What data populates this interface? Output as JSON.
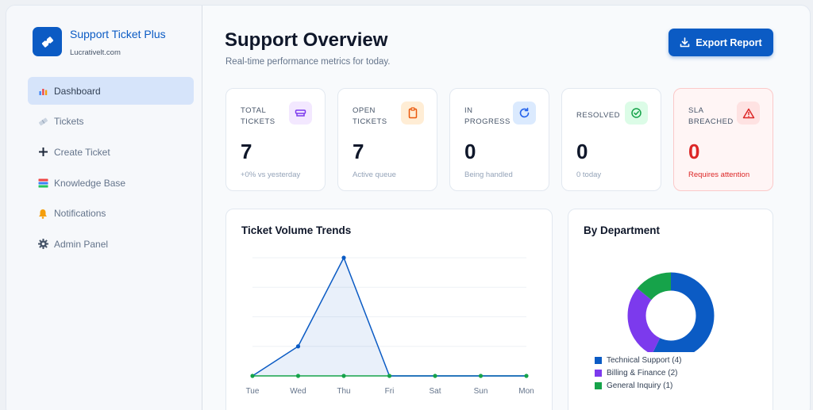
{
  "app": {
    "name": "Support Ticket Plus",
    "domain": "Lucrativelt.com",
    "brand_color": "#0b5bc4",
    "logo_icon": "ticket-icon"
  },
  "sidebar": {
    "items": [
      {
        "label": "Dashboard",
        "icon": "bar-chart-icon",
        "active": true
      },
      {
        "label": "Tickets",
        "icon": "ticket-icon",
        "active": false
      },
      {
        "label": "Create Ticket",
        "icon": "plus-icon",
        "active": false
      },
      {
        "label": "Knowledge Base",
        "icon": "books-icon",
        "active": false
      },
      {
        "label": "Notifications",
        "icon": "bell-icon",
        "active": false
      },
      {
        "label": "Admin Panel",
        "icon": "gear-icon",
        "active": false
      }
    ]
  },
  "header": {
    "title": "Support Overview",
    "subtitle": "Real-time performance metrics for today.",
    "export_label": "Export Report",
    "export_icon": "download-icon"
  },
  "stats": [
    {
      "label": "TOTAL TICKETS",
      "value": "7",
      "sub": "+0% vs yesterday",
      "icon": "inbox-icon",
      "icon_color": "#7c3aed",
      "icon_bg": "#f3e8ff"
    },
    {
      "label": "OPEN TICKETS",
      "value": "7",
      "sub": "Active queue",
      "icon": "clipboard-icon",
      "icon_color": "#ea580c",
      "icon_bg": "#ffedd5"
    },
    {
      "label": "IN PROGRESS",
      "value": "0",
      "sub": "Being handled",
      "icon": "refresh-icon",
      "icon_color": "#2563eb",
      "icon_bg": "#dbeafe"
    },
    {
      "label": "RESOLVED",
      "value": "0",
      "sub": "0 today",
      "icon": "check-circle-icon",
      "icon_color": "#16a34a",
      "icon_bg": "#dcfce7"
    },
    {
      "label": "SLA BREACHED",
      "value": "0",
      "sub": "Requires attention",
      "icon": "warning-icon",
      "icon_color": "#dc2626",
      "icon_bg": "#fee2e2"
    }
  ],
  "trend_panel": {
    "title": "Ticket Volume Trends"
  },
  "dept_panel": {
    "title": "By Department"
  },
  "chart_data": [
    {
      "type": "area",
      "title": "Ticket Volume Trends",
      "categories": [
        "Tue",
        "Wed",
        "Thu",
        "Fri",
        "Sat",
        "Sun",
        "Mon"
      ],
      "series": [
        {
          "color": "#0b5bc4",
          "values": [
            0,
            1,
            4,
            0,
            0,
            0,
            0
          ]
        },
        {
          "color": "#16a34a",
          "values": [
            0,
            0,
            0,
            0,
            0,
            0,
            0
          ]
        }
      ],
      "ylim": [
        0,
        4
      ],
      "grid": true
    },
    {
      "type": "pie",
      "title": "By Department",
      "donut": true,
      "labels": [
        "Technical Support (4)",
        "Billing & Finance (2)",
        "General Inquiry (1)"
      ],
      "values": [
        4,
        2,
        1
      ],
      "colors": [
        "#0b5bc4",
        "#7c3aed",
        "#16a34a"
      ],
      "legend": "bottom-left"
    }
  ]
}
